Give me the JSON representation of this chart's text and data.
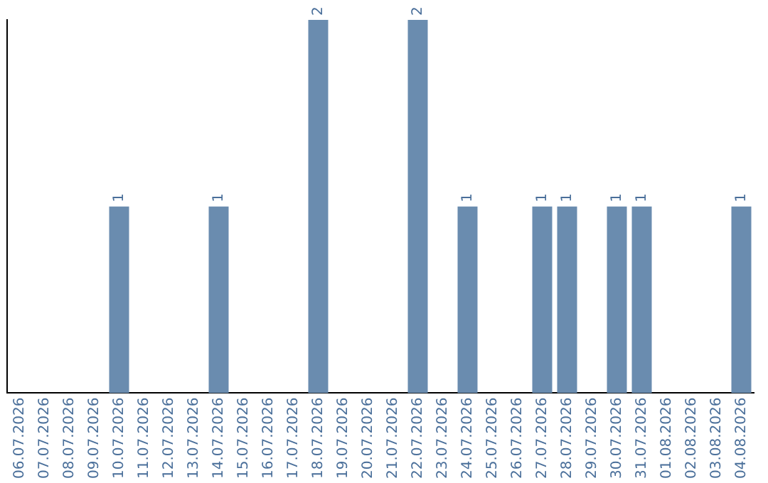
{
  "chart_data": {
    "type": "bar",
    "categories": [
      "06.07.2026",
      "07.07.2026",
      "08.07.2026",
      "09.07.2026",
      "10.07.2026",
      "11.07.2026",
      "12.07.2026",
      "13.07.2026",
      "14.07.2026",
      "15.07.2026",
      "16.07.2026",
      "17.07.2026",
      "18.07.2026",
      "19.07.2026",
      "20.07.2026",
      "21.07.2026",
      "22.07.2026",
      "23.07.2026",
      "24.07.2026",
      "25.07.2026",
      "26.07.2026",
      "27.07.2026",
      "28.07.2026",
      "29.07.2026",
      "30.07.2026",
      "31.07.2026",
      "01.08.2026",
      "02.08.2026",
      "03.08.2026",
      "04.08.2026"
    ],
    "values": [
      0,
      0,
      0,
      0,
      1,
      0,
      0,
      0,
      1,
      0,
      0,
      0,
      2,
      0,
      0,
      0,
      2,
      0,
      1,
      0,
      0,
      1,
      1,
      0,
      1,
      1,
      0,
      0,
      0,
      1
    ],
    "value_labels": [
      null,
      null,
      null,
      null,
      "1",
      null,
      null,
      null,
      "1",
      null,
      null,
      null,
      "2",
      null,
      null,
      null,
      "2",
      null,
      "1",
      null,
      null,
      "1",
      "1",
      null,
      "1",
      "1",
      null,
      null,
      null,
      "1"
    ],
    "color": "#6a8caf",
    "ylim": [
      0,
      2
    ],
    "tick_labels": "x",
    "grid": false,
    "legend": false
  }
}
